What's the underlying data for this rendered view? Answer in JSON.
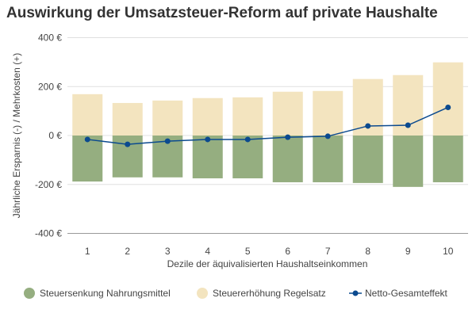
{
  "chart_data": {
    "type": "bar",
    "title": "Auswirkung der Umsatzsteuer-Reform auf private Haushalte",
    "xlabel": "Dezile der äquivalisierten Haushaltseinkommen",
    "ylabel": "Jährliche Ersparnis (-) / Mehrkosten (+)",
    "categories": [
      "1",
      "2",
      "3",
      "4",
      "5",
      "6",
      "7",
      "8",
      "9",
      "10"
    ],
    "ylim": [
      -400,
      400
    ],
    "yticks": [
      400,
      200,
      0,
      -200,
      -400
    ],
    "ytick_labels": [
      "400 €",
      "200 €",
      "0 €",
      "-200 €",
      "-400 €"
    ],
    "grid": true,
    "legend_position": "bottom",
    "series": [
      {
        "name": "Steuersenkung Nahrungsmittel",
        "kind": "bar",
        "color": "#95ae80",
        "values": [
          -188,
          -171,
          -171,
          -175,
          -175,
          -191,
          -191,
          -194,
          -210,
          -191
        ]
      },
      {
        "name": "Steuererhöhung Regelsatz",
        "kind": "bar",
        "color": "#f3e4bf",
        "values": [
          169,
          133,
          143,
          153,
          156,
          179,
          182,
          231,
          247,
          299
        ]
      },
      {
        "name": "Netto-Gesamteffekt",
        "kind": "line",
        "color": "#0b4a8f",
        "values": [
          -16,
          -36,
          -23,
          -16,
          -16,
          -7,
          -3,
          39,
          42,
          115
        ]
      }
    ]
  }
}
